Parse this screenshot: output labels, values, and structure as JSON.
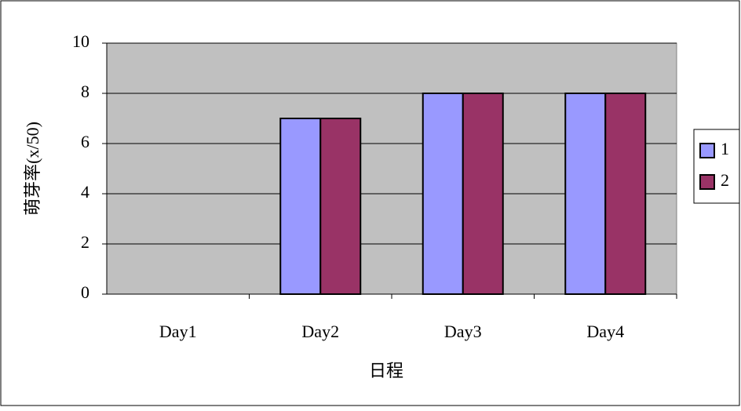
{
  "chart_data": {
    "type": "bar",
    "x_label": "日程",
    "y_label": "萌芽率(x/50)",
    "categories": [
      "Day1",
      "Day2",
      "Day3",
      "Day4"
    ],
    "series": [
      {
        "name": "1",
        "color": "#9999ff",
        "values": [
          0,
          7,
          8,
          8
        ]
      },
      {
        "name": "2",
        "color": "#993366",
        "values": [
          0,
          7,
          8,
          8
        ]
      }
    ],
    "ylim": [
      0,
      10
    ],
    "yticks": [
      0,
      2,
      4,
      6,
      8,
      10
    ],
    "grid": true,
    "plot_background": "#c0c0c0",
    "legend": "right"
  }
}
